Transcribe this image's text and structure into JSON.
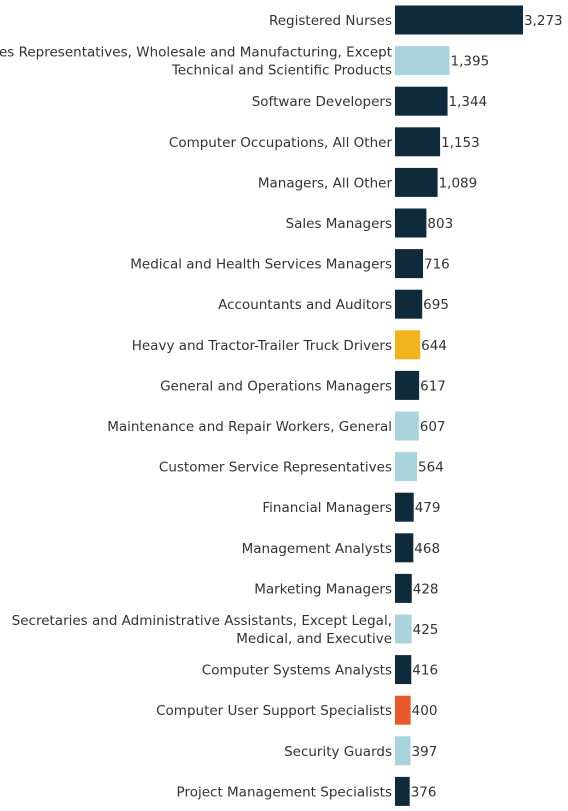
{
  "chart_data": {
    "type": "bar",
    "orientation": "horizontal",
    "title": "",
    "xlabel": "",
    "ylabel": "",
    "xlim": [
      0,
      3273
    ],
    "grid": false,
    "legend": "none",
    "categories": [
      [
        "Registered Nurses"
      ],
      [
        "Sales Representatives, Wholesale and Manufacturing, Except",
        "Technical and Scientific Products"
      ],
      [
        "Software Developers"
      ],
      [
        "Computer Occupations, All Other"
      ],
      [
        "Managers, All Other"
      ],
      [
        "Sales Managers"
      ],
      [
        "Medical and Health Services Managers"
      ],
      [
        "Accountants and Auditors"
      ],
      [
        "Heavy and Tractor-Trailer Truck Drivers"
      ],
      [
        "General and Operations Managers"
      ],
      [
        "Maintenance and Repair Workers, General"
      ],
      [
        "Customer Service Representatives"
      ],
      [
        "Financial Managers"
      ],
      [
        "Management Analysts"
      ],
      [
        "Marketing Managers"
      ],
      [
        "Secretaries and Administrative Assistants, Except Legal,",
        "Medical, and Executive"
      ],
      [
        "Computer Systems Analysts"
      ],
      [
        "Computer User Support Specialists"
      ],
      [
        "Security Guards"
      ],
      [
        "Project Management Specialists"
      ]
    ],
    "values": [
      3273,
      1395,
      1344,
      1153,
      1089,
      803,
      716,
      695,
      644,
      617,
      607,
      564,
      479,
      468,
      428,
      425,
      416,
      400,
      397,
      376
    ],
    "value_labels": [
      "3,273",
      "1,395",
      "1,344",
      "1,153",
      "1,089",
      "803",
      "716",
      "695",
      "644",
      "617",
      "607",
      "564",
      "479",
      "468",
      "428",
      "425",
      "416",
      "400",
      "397",
      "376"
    ],
    "bar_colors": [
      "#0f2a3a",
      "#a9d4dc",
      "#0f2a3a",
      "#0f2a3a",
      "#0f2a3a",
      "#0f2a3a",
      "#0f2a3a",
      "#0f2a3a",
      "#f2b21b",
      "#0f2a3a",
      "#a9d4dc",
      "#a9d4dc",
      "#0f2a3a",
      "#0f2a3a",
      "#0f2a3a",
      "#a9d4dc",
      "#0f2a3a",
      "#e8582b",
      "#a9d4dc",
      "#0f2a3a"
    ]
  }
}
